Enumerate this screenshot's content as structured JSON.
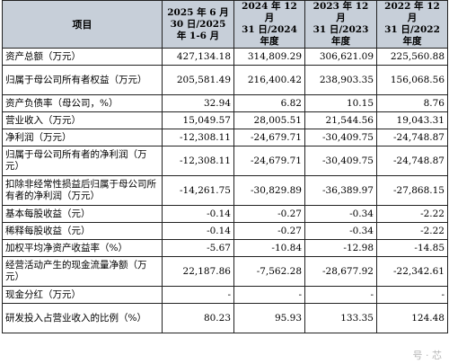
{
  "table": {
    "header": {
      "item": "项目",
      "periods": [
        [
          "2025 年 6 月",
          "30 日/2025",
          "年 1-6 月"
        ],
        [
          "2024 年 12 月",
          "31 日/2024",
          "年度"
        ],
        [
          "2023 年 12 月",
          "31 日/2023",
          "年度"
        ],
        [
          "2022 年 12 月",
          "31 日/2022",
          "年度"
        ]
      ]
    },
    "rows": [
      {
        "label": "资产总额（万元）",
        "values": [
          "427,134.18",
          "314,809.29",
          "306,621.09",
          "225,560.88"
        ]
      },
      {
        "label": "归属于母公司所有者权益（万元）",
        "values": [
          "205,581.49",
          "216,400.42",
          "238,903.35",
          "156,068.56"
        ]
      },
      {
        "label": "资产负债率（母公司，%）",
        "values": [
          "32.94",
          "6.82",
          "10.15",
          "8.76"
        ]
      },
      {
        "label": "营业收入（万元）",
        "values": [
          "15,049.57",
          "28,005.51",
          "21,544.56",
          "19,043.31"
        ]
      },
      {
        "label": "净利润（万元）",
        "values": [
          "-12,308.11",
          "-24,679.71",
          "-30,409.75",
          "-24,748.87"
        ]
      },
      {
        "label": "归属于母公司所有者的净利润（万元）",
        "values": [
          "-12,308.11",
          "-24,679.71",
          "-30,409.75",
          "-24,748.87"
        ]
      },
      {
        "label": "扣除非经常性损益后归属于母公司所有者的净利润（万元）",
        "values": [
          "-14,261.75",
          "-30,829.89",
          "-36,389.97",
          "-27,868.15"
        ]
      },
      {
        "label": "基本每股收益（元）",
        "values": [
          "-0.14",
          "-0.27",
          "-0.34",
          "-2.22"
        ]
      },
      {
        "label": "稀释每股收益（元）",
        "values": [
          "-0.14",
          "-0.27",
          "-0.34",
          "-2.22"
        ]
      },
      {
        "label": "加权平均净资产收益率（%）",
        "values": [
          "-5.67",
          "-10.84",
          "-12.98",
          "-14.85"
        ]
      },
      {
        "label": "经营活动产生的现金流量净额（万元）",
        "values": [
          "22,187.86",
          "-7,562.28",
          "-28,677.92",
          "-22,342.61"
        ]
      },
      {
        "label": "现金分红（万元）",
        "values": [
          "-",
          "-",
          "-",
          "-"
        ]
      },
      {
        "label": "研发投入占营业收入的比例（%）",
        "values": [
          "80.23",
          "95.93",
          "133.35",
          "124.48"
        ]
      }
    ]
  },
  "watermark": "号 · 芯"
}
